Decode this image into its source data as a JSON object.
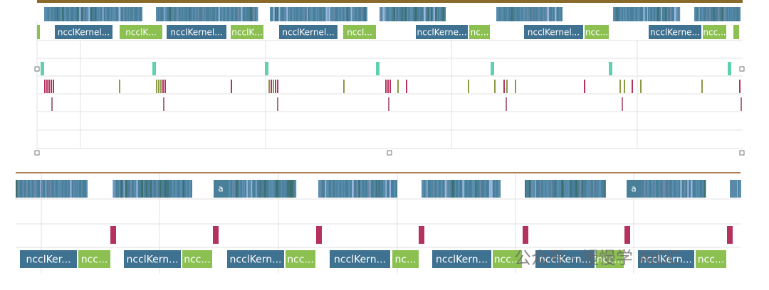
{
  "top_panel": {
    "kernels": [
      {
        "label": "ncclKernel..."
      },
      {
        "label": "ncclK..."
      },
      {
        "label": "ncclKernel..."
      },
      {
        "label": "ncclK..."
      },
      {
        "label": "ncclKernel..."
      },
      {
        "label": "nccl..."
      },
      {
        "label": "ncclKerne..."
      },
      {
        "label": "nc..."
      },
      {
        "label": "ncclKernel..."
      },
      {
        "label": "ncc..."
      },
      {
        "label": "ncclKerne..."
      },
      {
        "label": "ncc..."
      }
    ]
  },
  "bottom_panel": {
    "markers": [
      "a",
      "a"
    ],
    "kernels": [
      {
        "label": "ncclKer..."
      },
      {
        "label": "ncc..."
      },
      {
        "label": "ncclKern..."
      },
      {
        "label": "ncc..."
      },
      {
        "label": "ncclKern..."
      },
      {
        "label": "ncc..."
      },
      {
        "label": "ncclKern..."
      },
      {
        "label": "nc..."
      },
      {
        "label": "ncclKern..."
      },
      {
        "label": "ncc..."
      },
      {
        "label": "ncclKern..."
      },
      {
        "label": "ncc..."
      },
      {
        "label": "ncclKern..."
      },
      {
        "label": "ncc..."
      }
    ]
  },
  "watermark": "公众号 · 慢慢学 AIGC"
}
